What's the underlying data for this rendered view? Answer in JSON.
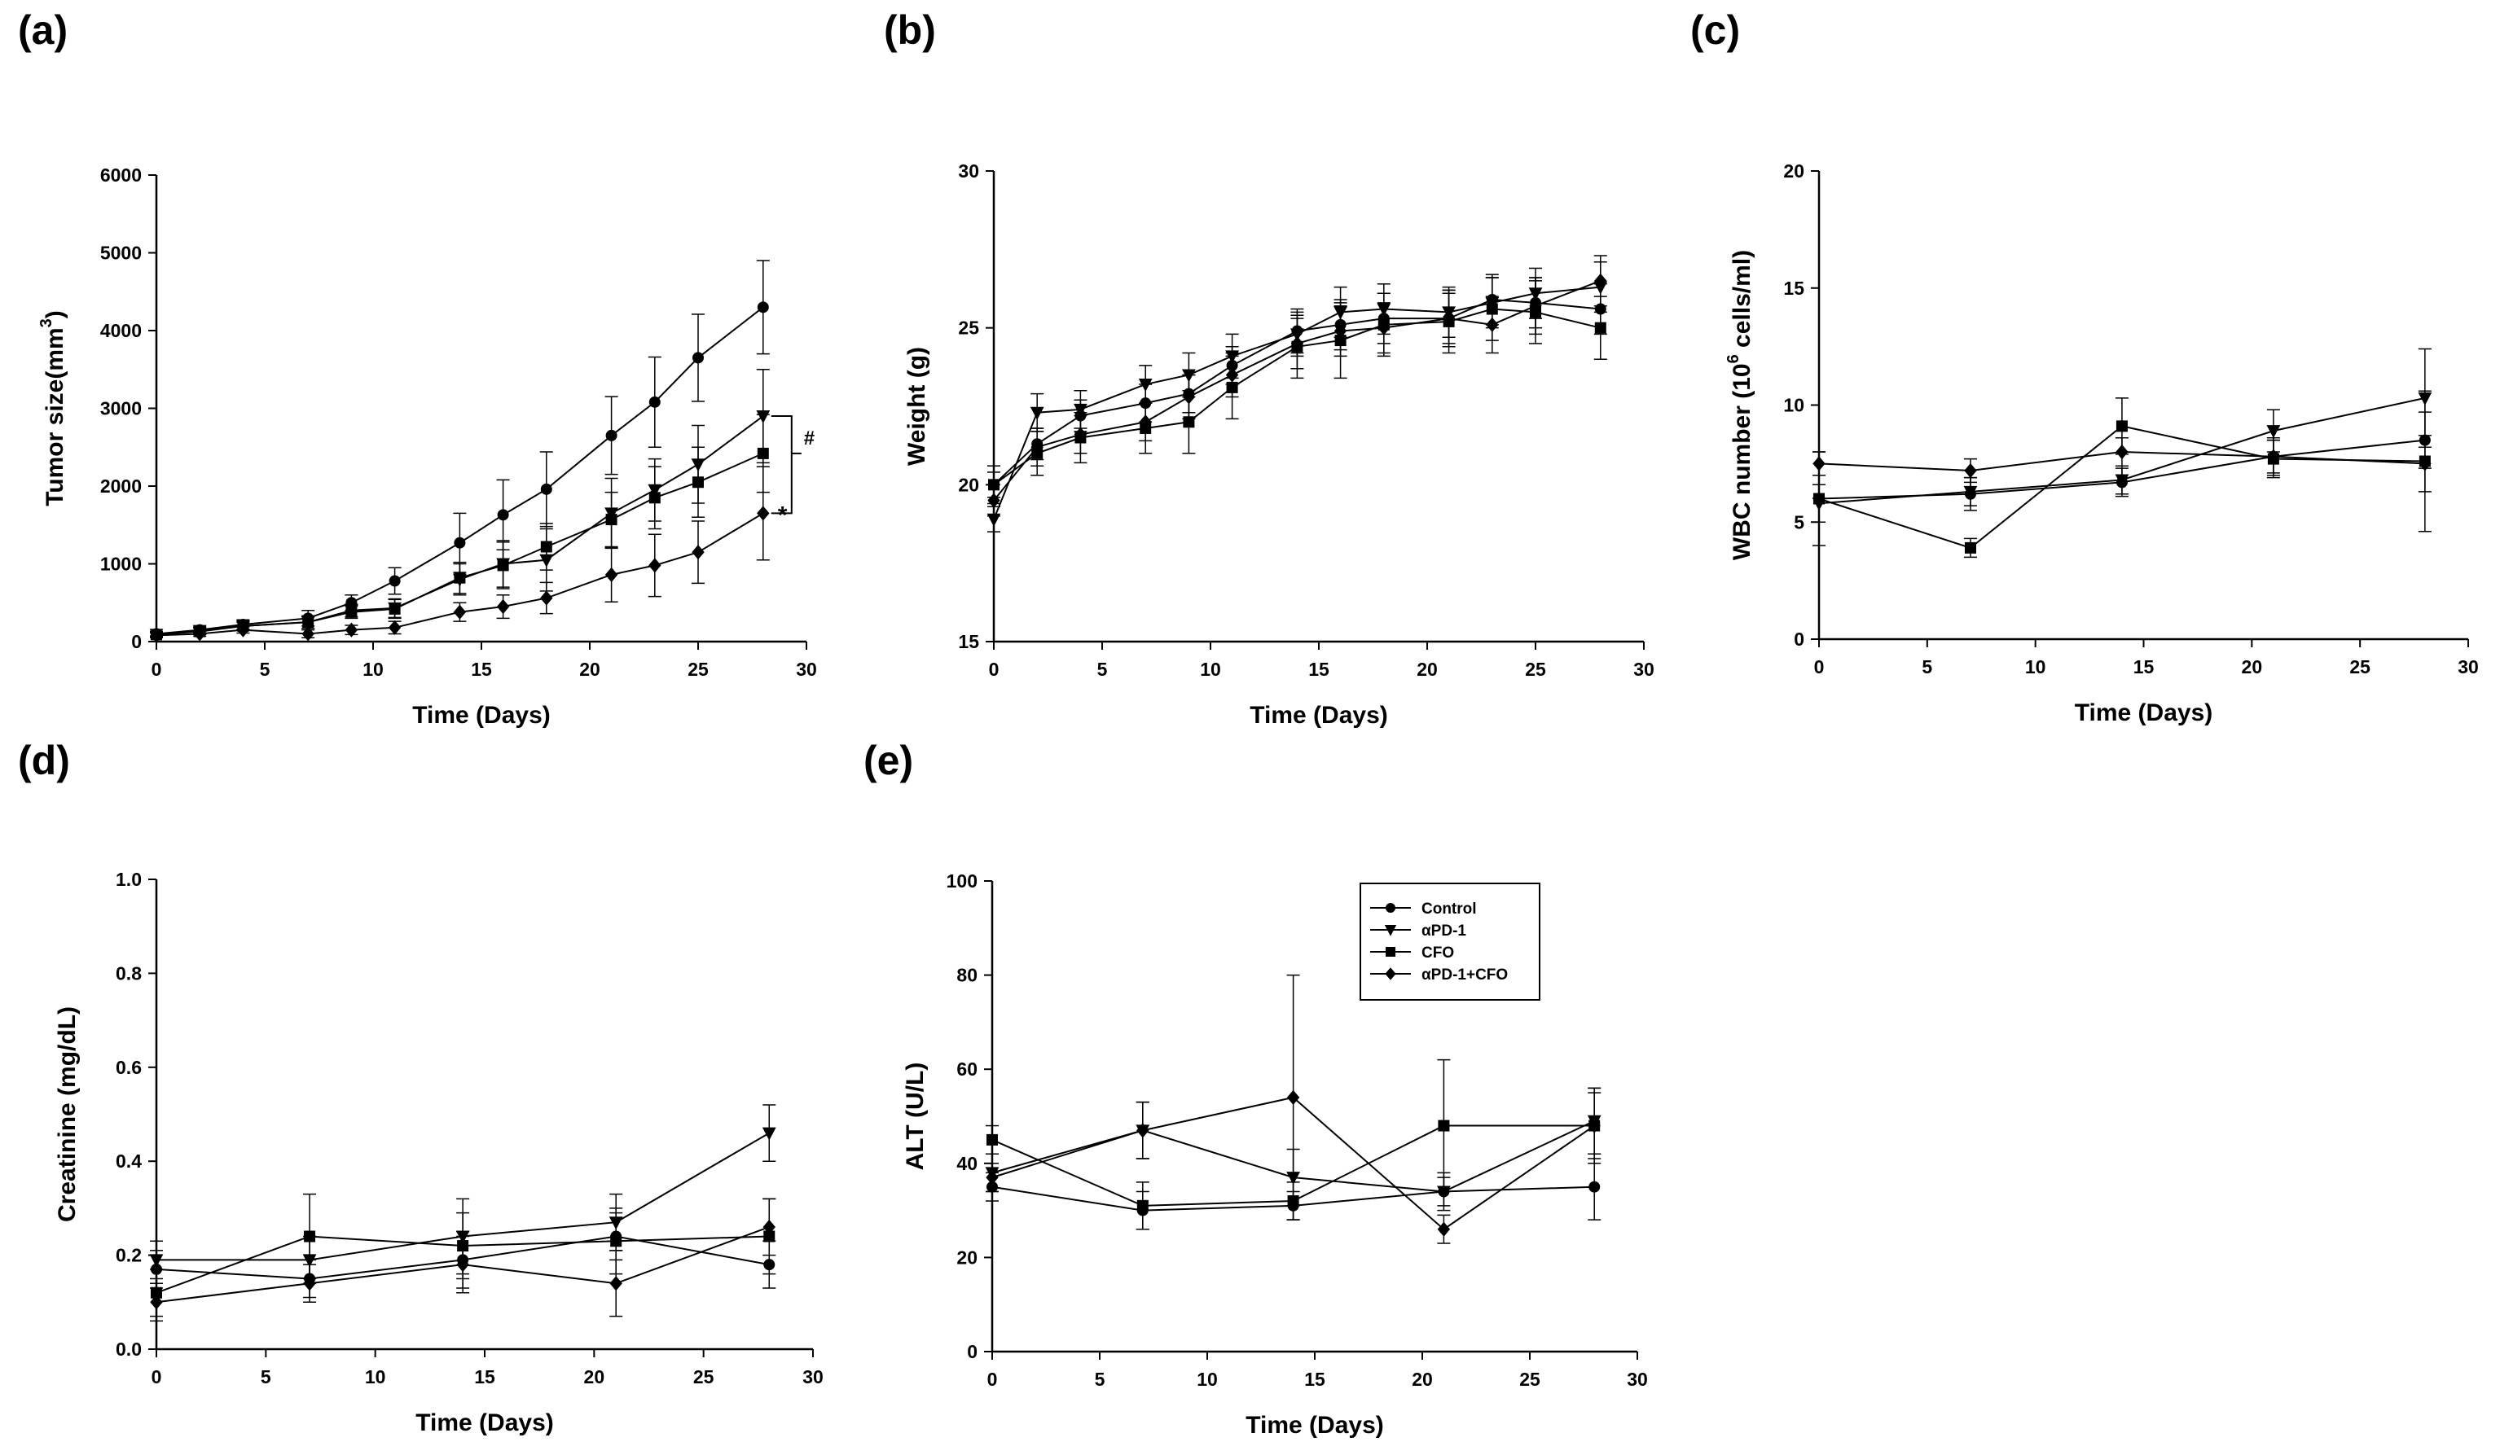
{
  "chart_data": [
    {
      "id": "a",
      "panel_label": "(a)",
      "type": "line",
      "xlabel": "Time (Days)",
      "ylabel": "Tumor size(mm3)",
      "xlim": [
        0,
        30
      ],
      "ylim": [
        0,
        6000
      ],
      "xticks": [
        0,
        5,
        10,
        15,
        20,
        25,
        30
      ],
      "yticks": [
        0,
        1000,
        2000,
        3000,
        4000,
        5000,
        6000
      ],
      "annotations": [
        "#",
        "*"
      ],
      "series": [
        {
          "name": "Control",
          "marker": "circle",
          "x": [
            0,
            2,
            4,
            7,
            9,
            11,
            14,
            16,
            18,
            21,
            23,
            25,
            28
          ],
          "y": [
            100,
            150,
            220,
            300,
            500,
            780,
            1270,
            1630,
            1960,
            2650,
            3080,
            3650,
            4300
          ],
          "err": [
            30,
            40,
            60,
            100,
            100,
            170,
            380,
            450,
            480,
            500,
            580,
            560,
            600
          ]
        },
        {
          "name": "αPD-1",
          "marker": "triangle-down",
          "x": [
            0,
            2,
            4,
            7,
            9,
            11,
            14,
            16,
            18,
            21,
            23,
            25,
            28
          ],
          "y": [
            90,
            140,
            200,
            250,
            400,
            430,
            800,
            1000,
            1050,
            1650,
            1950,
            2280,
            2900
          ],
          "err": [
            30,
            40,
            50,
            80,
            80,
            120,
            200,
            300,
            400,
            450,
            400,
            500,
            600
          ]
        },
        {
          "name": "CFO",
          "marker": "square",
          "x": [
            0,
            2,
            4,
            7,
            9,
            11,
            14,
            16,
            18,
            21,
            23,
            25,
            28
          ],
          "y": [
            90,
            130,
            200,
            250,
            380,
            420,
            820,
            980,
            1220,
            1570,
            1850,
            2050,
            2420
          ],
          "err": [
            30,
            40,
            50,
            80,
            80,
            120,
            200,
            300,
            300,
            350,
            400,
            450,
            500
          ]
        },
        {
          "name": "αPD-1+CFO",
          "marker": "diamond",
          "x": [
            0,
            2,
            4,
            7,
            9,
            11,
            14,
            16,
            18,
            21,
            23,
            25,
            28
          ],
          "y": [
            80,
            100,
            150,
            100,
            150,
            180,
            380,
            450,
            560,
            860,
            980,
            1150,
            1650
          ],
          "err": [
            30,
            30,
            40,
            50,
            60,
            80,
            120,
            150,
            200,
            350,
            400,
            400,
            600
          ]
        }
      ]
    },
    {
      "id": "b",
      "panel_label": "(b)",
      "type": "line",
      "xlabel": "Time (Days)",
      "ylabel": "Weight (g)",
      "xlim": [
        0,
        30
      ],
      "ylim": [
        15,
        30
      ],
      "xticks": [
        0,
        5,
        10,
        15,
        20,
        25,
        30
      ],
      "yticks": [
        15,
        20,
        25,
        30
      ],
      "series": [
        {
          "name": "Control",
          "marker": "circle",
          "x": [
            0,
            2,
            4,
            7,
            9,
            11,
            14,
            16,
            18,
            21,
            23,
            25,
            28
          ],
          "y": [
            20.0,
            21.3,
            22.2,
            22.6,
            22.9,
            23.8,
            24.9,
            25.1,
            25.3,
            25.3,
            25.9,
            25.8,
            25.6
          ],
          "err": [
            0.4,
            0.5,
            0.5,
            0.6,
            0.6,
            0.6,
            0.7,
            0.8,
            0.8,
            0.8,
            0.8,
            0.8,
            0.8
          ]
        },
        {
          "name": "αPD-1",
          "marker": "triangle-down",
          "x": [
            0,
            2,
            4,
            7,
            9,
            11,
            14,
            16,
            18,
            21,
            23,
            25,
            28
          ],
          "y": [
            18.9,
            22.3,
            22.4,
            23.2,
            23.5,
            24.1,
            24.8,
            25.5,
            25.6,
            25.5,
            25.8,
            26.1,
            26.3
          ],
          "err": [
            0.4,
            0.6,
            0.6,
            0.6,
            0.7,
            0.7,
            0.7,
            0.8,
            0.8,
            0.8,
            0.8,
            0.8,
            0.8
          ]
        },
        {
          "name": "CFO",
          "marker": "square",
          "x": [
            0,
            2,
            4,
            7,
            9,
            11,
            14,
            16,
            18,
            21,
            23,
            25,
            28
          ],
          "y": [
            20.0,
            21.0,
            21.5,
            21.8,
            22.0,
            23.1,
            24.4,
            24.6,
            25.1,
            25.2,
            25.6,
            25.5,
            25.0
          ],
          "err": [
            0.6,
            0.7,
            0.8,
            0.8,
            1.0,
            1.0,
            1.0,
            1.2,
            1.0,
            1.0,
            1.0,
            1.0,
            1.0
          ]
        },
        {
          "name": "αPD-1+CFO",
          "marker": "diamond",
          "x": [
            0,
            2,
            4,
            7,
            9,
            11,
            14,
            16,
            18,
            21,
            23,
            25,
            28
          ],
          "y": [
            19.5,
            21.2,
            21.6,
            22.0,
            22.8,
            23.5,
            24.5,
            24.9,
            25.0,
            25.3,
            25.1,
            25.7,
            26.5
          ],
          "err": [
            0.5,
            0.6,
            0.6,
            0.6,
            0.7,
            0.7,
            0.8,
            0.8,
            0.8,
            0.9,
            0.9,
            0.9,
            0.8
          ]
        }
      ]
    },
    {
      "id": "c",
      "panel_label": "(c)",
      "type": "line",
      "xlabel": "Time (Days)",
      "ylabel": "WBC number (106 cells/ml)",
      "xlim": [
        0,
        30
      ],
      "ylim": [
        0,
        20
      ],
      "xticks": [
        0,
        5,
        10,
        15,
        20,
        25,
        30
      ],
      "yticks": [
        0,
        5,
        10,
        15,
        20
      ],
      "series": [
        {
          "name": "Control",
          "marker": "circle",
          "x": [
            0,
            7,
            14,
            21,
            28
          ],
          "y": [
            6.0,
            6.2,
            6.7,
            7.8,
            8.5
          ],
          "err": [
            1.0,
            0.7,
            0.6,
            0.8,
            1.2
          ]
        },
        {
          "name": "αPD-1",
          "marker": "triangle-down",
          "x": [
            0,
            7,
            14,
            21,
            28
          ],
          "y": [
            5.8,
            6.3,
            6.8,
            8.9,
            10.3
          ],
          "err": [
            0.8,
            0.6,
            0.6,
            0.9,
            2.1
          ]
        },
        {
          "name": "CFO",
          "marker": "square",
          "x": [
            0,
            7,
            14,
            21,
            28
          ],
          "y": [
            6.0,
            3.9,
            9.1,
            7.7,
            7.6
          ],
          "err": [
            2.0,
            0.4,
            1.2,
            0.8,
            3.0
          ]
        },
        {
          "name": "αPD-1+CFO",
          "marker": "diamond",
          "x": [
            0,
            7,
            14,
            21,
            28
          ],
          "y": [
            7.5,
            7.2,
            8.0,
            7.8,
            7.5
          ],
          "err": [
            0.5,
            0.5,
            0.6,
            0.7,
            1.2
          ]
        }
      ]
    },
    {
      "id": "d",
      "panel_label": "(d)",
      "type": "line",
      "xlabel": "Time (Days)",
      "ylabel": "Creatinine (mg/dL)",
      "xlim": [
        0,
        30
      ],
      "ylim": [
        0.0,
        1.0
      ],
      "xticks": [
        0,
        5,
        10,
        15,
        20,
        25,
        30
      ],
      "yticks": [
        "0.0",
        "0.2",
        "0.4",
        "0.6",
        "0.8",
        "1.0"
      ],
      "series": [
        {
          "name": "Control",
          "marker": "circle",
          "x": [
            0,
            7,
            14,
            21,
            28
          ],
          "y": [
            0.17,
            0.15,
            0.19,
            0.24,
            0.18
          ],
          "err": [
            0.04,
            0.04,
            0.06,
            0.05,
            0.05
          ]
        },
        {
          "name": "αPD-1",
          "marker": "triangle-down",
          "x": [
            0,
            7,
            14,
            21,
            28
          ],
          "y": [
            0.19,
            0.19,
            0.24,
            0.27,
            0.46
          ],
          "err": [
            0.04,
            0.05,
            0.08,
            0.06,
            0.06
          ]
        },
        {
          "name": "CFO",
          "marker": "square",
          "x": [
            0,
            7,
            14,
            21,
            28
          ],
          "y": [
            0.12,
            0.24,
            0.22,
            0.23,
            0.24
          ],
          "err": [
            0.05,
            0.09,
            0.07,
            0.07,
            0.08
          ]
        },
        {
          "name": "αPD-1+CFO",
          "marker": "diamond",
          "x": [
            0,
            7,
            14,
            21,
            28
          ],
          "y": [
            0.1,
            0.14,
            0.18,
            0.14,
            0.26
          ],
          "err": [
            0.04,
            0.04,
            0.06,
            0.07,
            0.06
          ]
        }
      ]
    },
    {
      "id": "e",
      "panel_label": "(e)",
      "type": "line",
      "xlabel": "Time (Days)",
      "ylabel": "ALT (U/L)",
      "xlim": [
        0,
        30
      ],
      "ylim": [
        0,
        100
      ],
      "xticks": [
        0,
        5,
        10,
        15,
        20,
        25,
        30
      ],
      "yticks": [
        0,
        20,
        40,
        60,
        80,
        100
      ],
      "legend": {
        "placement": "top-right",
        "entries": [
          "Control",
          "αPD-1",
          "CFO",
          "αPD-1+CFO"
        ]
      },
      "series": [
        {
          "name": "Control",
          "marker": "circle",
          "x": [
            0,
            7,
            14,
            21,
            28
          ],
          "y": [
            35,
            30,
            31,
            34,
            35
          ],
          "err": [
            3,
            4,
            3,
            3,
            7
          ]
        },
        {
          "name": "αPD-1",
          "marker": "triangle-down",
          "x": [
            0,
            7,
            14,
            21,
            28
          ],
          "y": [
            38,
            47,
            37,
            34,
            49
          ],
          "err": [
            4,
            6,
            6,
            4,
            7
          ]
        },
        {
          "name": "CFO",
          "marker": "square",
          "x": [
            0,
            7,
            14,
            21,
            28
          ],
          "y": [
            45,
            31,
            32,
            48,
            48
          ],
          "err": [
            3,
            5,
            4,
            14,
            8
          ]
        },
        {
          "name": "αPD-1+CFO",
          "marker": "diamond",
          "x": [
            0,
            7,
            14,
            21,
            28
          ],
          "y": [
            37,
            47,
            54,
            26,
            48
          ],
          "err": [
            3,
            6,
            26,
            3,
            7
          ]
        }
      ]
    }
  ]
}
